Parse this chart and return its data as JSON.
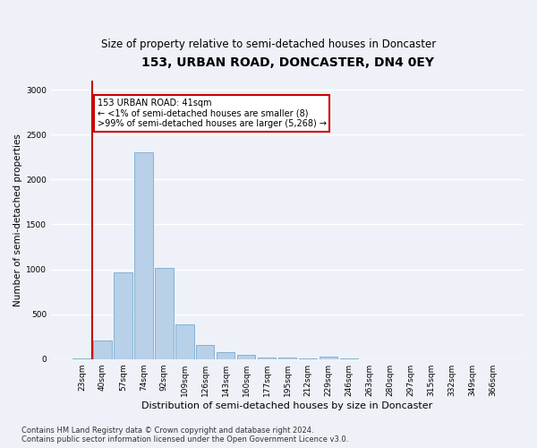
{
  "title": "153, URBAN ROAD, DONCASTER, DN4 0EY",
  "subtitle": "Size of property relative to semi-detached houses in Doncaster",
  "xlabel": "Distribution of semi-detached houses by size in Doncaster",
  "ylabel": "Number of semi-detached properties",
  "categories": [
    "23sqm",
    "40sqm",
    "57sqm",
    "74sqm",
    "92sqm",
    "109sqm",
    "126sqm",
    "143sqm",
    "160sqm",
    "177sqm",
    "195sqm",
    "212sqm",
    "229sqm",
    "246sqm",
    "263sqm",
    "280sqm",
    "297sqm",
    "315sqm",
    "332sqm",
    "349sqm",
    "366sqm"
  ],
  "values": [
    5,
    210,
    970,
    2300,
    1020,
    390,
    160,
    80,
    45,
    20,
    15,
    10,
    30,
    5,
    0,
    0,
    0,
    0,
    0,
    0,
    0
  ],
  "bar_color": "#b8d0e8",
  "bar_edge_color": "#7aaacf",
  "annotation_line1": "153 URBAN ROAD: 41sqm",
  "annotation_line2": "← <1% of semi-detached houses are smaller (8)",
  "annotation_line3": ">99% of semi-detached houses are larger (5,268) →",
  "ylim": [
    0,
    3100
  ],
  "yticks": [
    0,
    500,
    1000,
    1500,
    2000,
    2500,
    3000
  ],
  "footer_line1": "Contains HM Land Registry data © Crown copyright and database right 2024.",
  "footer_line2": "Contains public sector information licensed under the Open Government Licence v3.0.",
  "bg_color": "#eef2f8",
  "grid_color": "#ffffff",
  "title_fontsize": 10,
  "subtitle_fontsize": 8.5,
  "xlabel_fontsize": 8,
  "ylabel_fontsize": 7.5,
  "tick_fontsize": 6.5,
  "footer_fontsize": 6,
  "annotation_fontsize": 7,
  "box_facecolor": "#ffffff",
  "box_edgecolor": "#cc0000",
  "vline_color": "#cc0000",
  "vline_x": 0.5
}
